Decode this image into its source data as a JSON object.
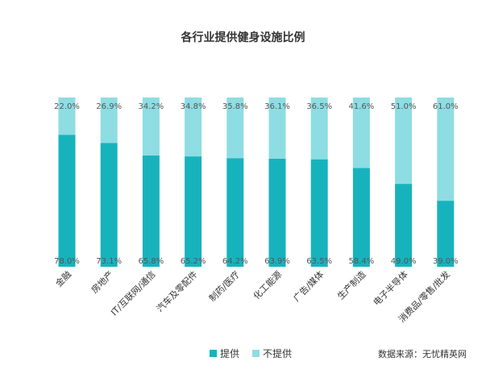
{
  "chart_data": {
    "type": "bar",
    "stacked": true,
    "title": "各行业提供健身设施比例",
    "categories": [
      "金融",
      "房地产",
      "IT/互联网/通信",
      "汽车及零配件",
      "制药/医疗",
      "化工能源",
      "广告/媒体",
      "生产制造",
      "电子半导体",
      "消费品/零售/批发"
    ],
    "series": [
      {
        "name": "提供",
        "color": "#17b3bd",
        "values": [
          78.0,
          73.1,
          65.8,
          65.2,
          64.2,
          63.9,
          63.5,
          58.4,
          49.0,
          39.0
        ],
        "labels": [
          "78.0%",
          "73.1%",
          "65.8%",
          "65.2%",
          "64.2%",
          "63.9%",
          "63.5%",
          "58.4%",
          "49.0%",
          "39.0%"
        ]
      },
      {
        "name": "不提供",
        "color": "#8ddde3",
        "values": [
          22.0,
          26.9,
          34.2,
          34.8,
          35.8,
          36.1,
          36.5,
          41.6,
          51.0,
          61.0
        ],
        "labels": [
          "22.0%",
          "26.9%",
          "34.2%",
          "34.8%",
          "35.8%",
          "36.1%",
          "36.5%",
          "41.6%",
          "51.0%",
          "61.0%"
        ]
      }
    ],
    "ylim": [
      0,
      100
    ],
    "grid": false,
    "legend_position": "bottom"
  },
  "source_note": "数据来源：无忧精英网"
}
